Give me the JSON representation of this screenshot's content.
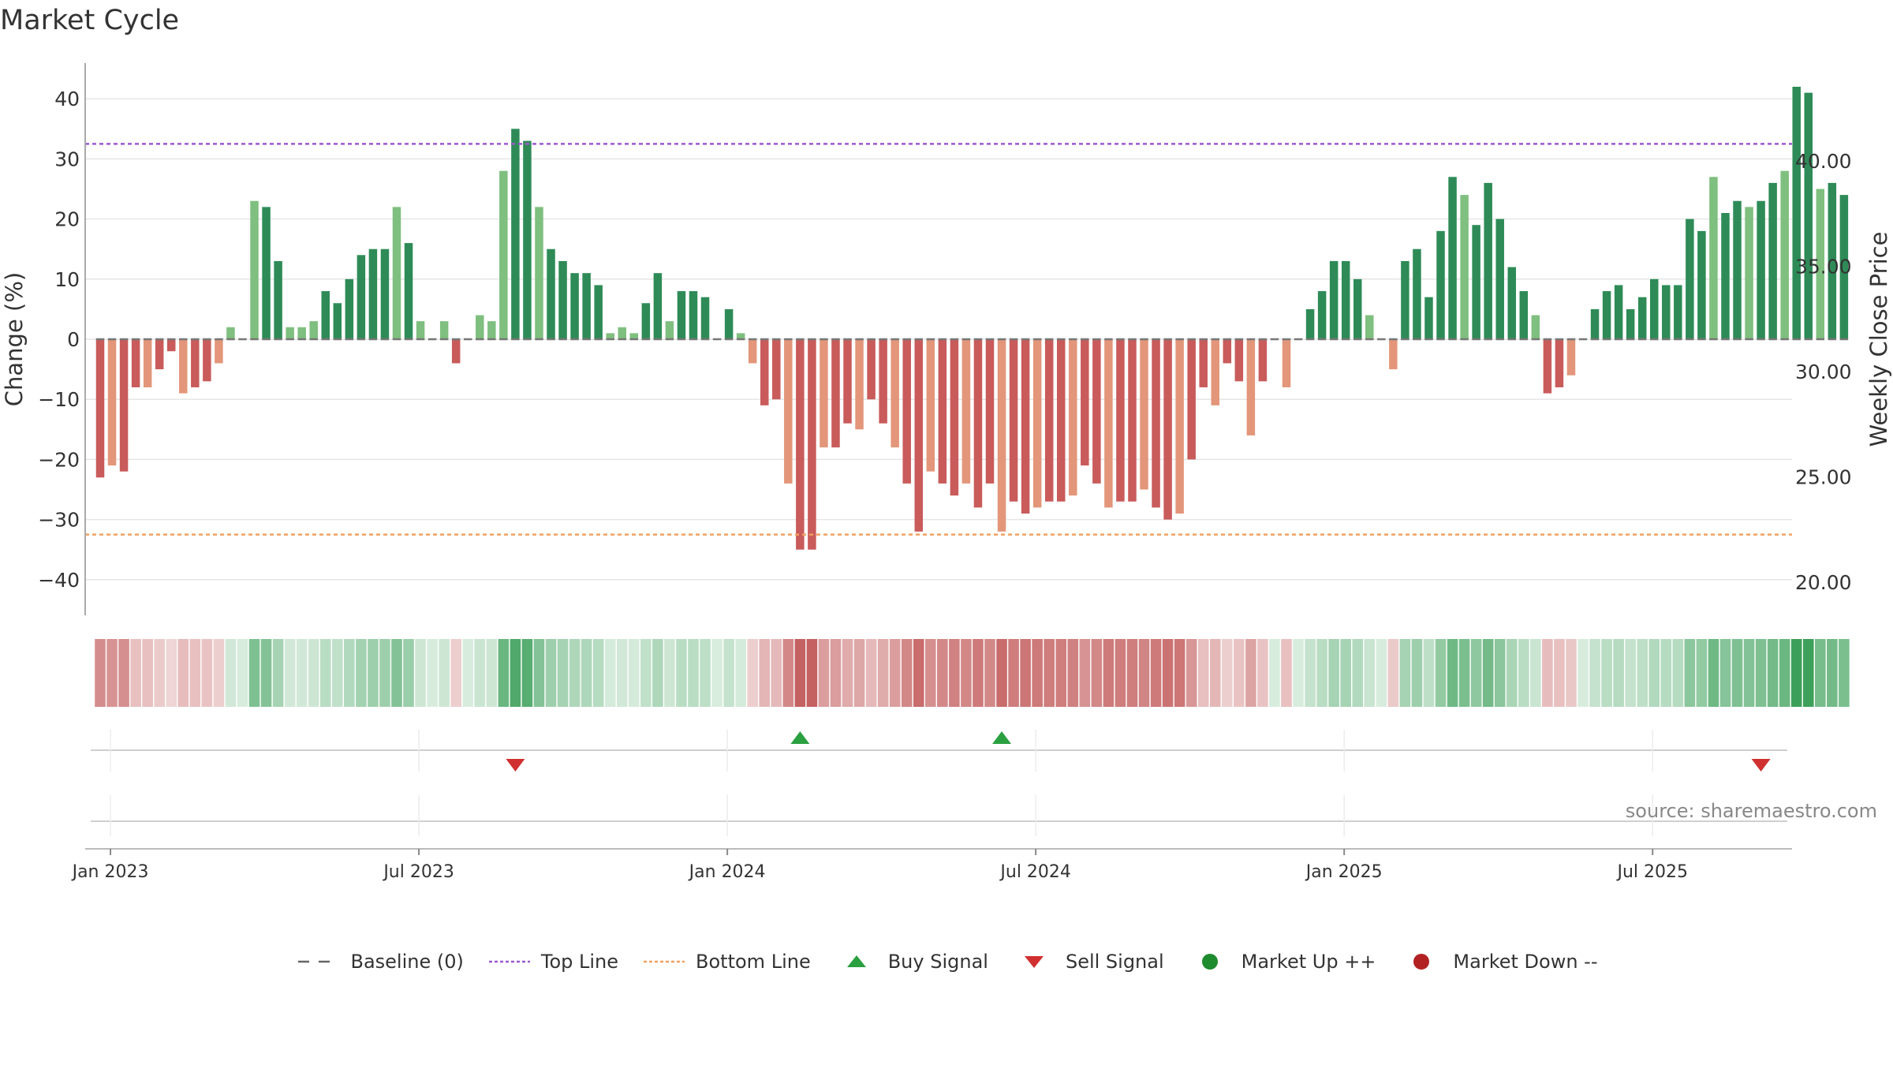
{
  "title": "Market Cycle",
  "source": "source: sharemaestro.com",
  "colors": {
    "up_dark": "#2e8b57",
    "up_light": "#7fbf7f",
    "down_dark": "#c95b5b",
    "down_light": "#e3967a",
    "top_line": "#9b59d0",
    "bottom_line": "#f0a060",
    "buy": "#2aa040",
    "sell": "#d03030",
    "market_up": "#1e8b2e",
    "market_down": "#b22222"
  },
  "legend": [
    {
      "label": "Baseline (0)",
      "kind": "baseline"
    },
    {
      "label": "Top Line",
      "kind": "top"
    },
    {
      "label": "Bottom Line",
      "kind": "bottom"
    },
    {
      "label": "Buy Signal",
      "kind": "buy"
    },
    {
      "label": "Sell Signal",
      "kind": "sell"
    },
    {
      "label": "Market Up ++",
      "kind": "mup"
    },
    {
      "label": "Market Down --",
      "kind": "mdown"
    }
  ],
  "chart_data": {
    "type": "bar",
    "ylabel": "Change (%)",
    "y2label": "Weekly Close Price",
    "ylim": [
      -46,
      46
    ],
    "yticks": [
      40,
      30,
      20,
      10,
      0,
      -10,
      -20,
      -30,
      -40
    ],
    "ytick_labels": [
      "40",
      "30",
      "20",
      "10",
      "0",
      "−10",
      "−20",
      "−30",
      "−40"
    ],
    "y2ticks": [
      40,
      35,
      30,
      25,
      20
    ],
    "y2tick_labels": [
      "40.00",
      "35.00",
      "30.00",
      "25.00",
      "20.00"
    ],
    "top_line": 32.5,
    "bottom_line": -32.5,
    "x_tick_labels": [
      "Jan 2023",
      "Jul 2023",
      "Jan 2024",
      "Jul 2024",
      "Jan 2025",
      "Jul 2025"
    ],
    "x_tick_weeks": [
      1,
      27,
      53,
      79,
      105,
      131
    ],
    "start_label": "Jan 2023",
    "values": [
      -23,
      -21,
      -22,
      -8,
      -8,
      -5,
      -2,
      -9,
      -8,
      -7,
      -4,
      2,
      0,
      23,
      22,
      13,
      2,
      2,
      3,
      8,
      6,
      10,
      14,
      15,
      15,
      22,
      16,
      3,
      0,
      3,
      -4,
      0,
      4,
      3,
      28,
      35,
      33,
      22,
      15,
      13,
      11,
      11,
      9,
      1,
      2,
      1,
      6,
      11,
      3,
      8,
      8,
      7,
      0,
      5,
      1,
      -4,
      -11,
      -10,
      -24,
      -35,
      -35,
      -18,
      -18,
      -14,
      -15,
      -10,
      -14,
      -18,
      -24,
      -32,
      -22,
      -24,
      -26,
      -24,
      -28,
      -24,
      -32,
      -27,
      -29,
      -28,
      -27,
      -27,
      -26,
      -21,
      -24,
      -28,
      -27,
      -27,
      -25,
      -28,
      -30,
      -29,
      -20,
      -8,
      -11,
      -4,
      -7,
      -16,
      -7,
      0,
      -8,
      0,
      5,
      8,
      13,
      13,
      10,
      4,
      0,
      -5,
      13,
      15,
      7,
      18,
      27,
      24,
      19,
      26,
      20,
      12,
      8,
      4,
      -9,
      -8,
      -6,
      0,
      5,
      8,
      9,
      5,
      7,
      10,
      9,
      9,
      20,
      18,
      27,
      21,
      23,
      22,
      23,
      26,
      28,
      42,
      41,
      25,
      26,
      24
    ],
    "buy_signal_weeks": [
      59,
      76
    ],
    "sell_signal_weeks": [
      35,
      140
    ]
  }
}
